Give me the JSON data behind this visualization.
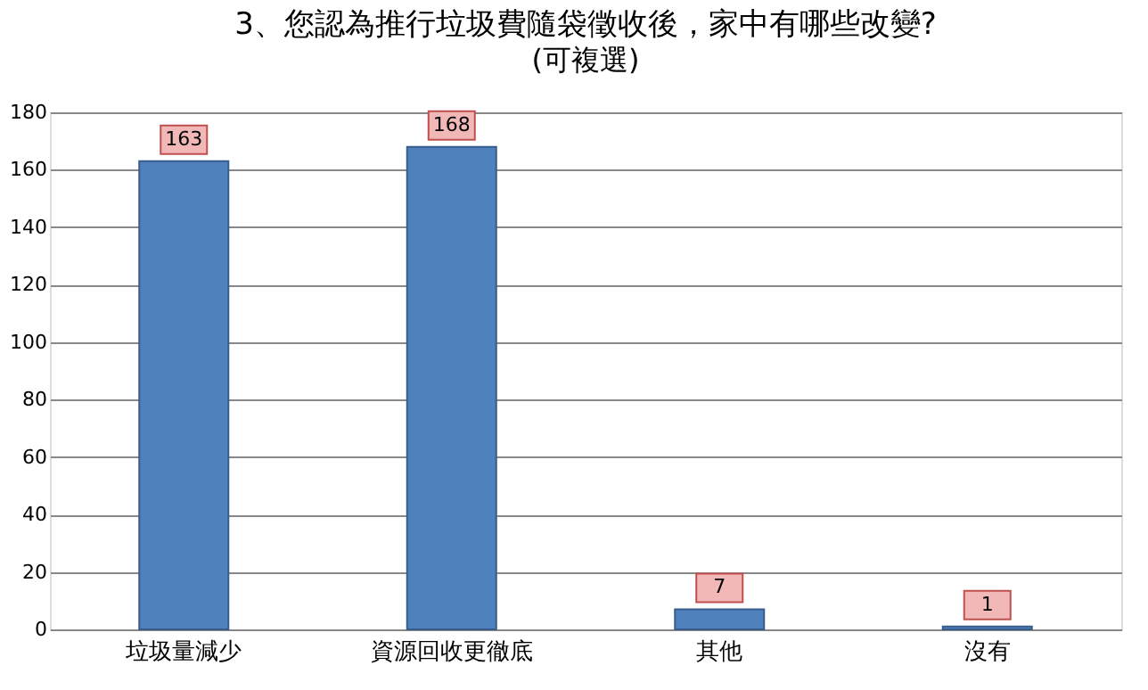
{
  "chart_data": {
    "type": "bar",
    "title": "3、您認為推行垃圾費隨袋徵收後，家中有哪些改變?",
    "subtitle": "(可複選)",
    "categories": [
      "垃圾量減少",
      "資源回收更徹底",
      "其他",
      "沒有"
    ],
    "values": [
      163,
      168,
      7,
      1
    ],
    "color": "#4f81bd",
    "ylim": [
      0,
      180
    ],
    "yticks": [
      0,
      20,
      40,
      60,
      80,
      100,
      120,
      140,
      160,
      180
    ],
    "grid": "y",
    "data_labels": true
  }
}
